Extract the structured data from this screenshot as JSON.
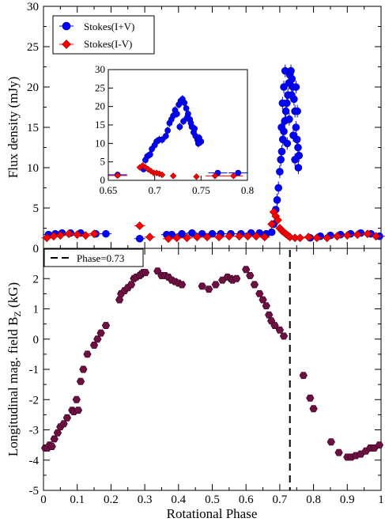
{
  "chart_data": [
    {
      "panel": "top",
      "type": "scatter",
      "xlabel": "",
      "ylabel": "Flux density (mJy)",
      "xlim": [
        0,
        1
      ],
      "ylim": [
        0,
        30
      ],
      "yticks": [
        "0",
        "5",
        "10",
        "15",
        "20",
        "25",
        "30"
      ],
      "legend": {
        "placement": "top-left",
        "entries": [
          "Stokes(I+V)",
          "Stokes(I-V)"
        ]
      },
      "series": [
        {
          "name": "Stokes(I+V)",
          "color": "#0000ff",
          "marker": "circle",
          "points": [
            [
              0.015,
              1.7
            ],
            [
              0.035,
              1.8
            ],
            [
              0.055,
              1.9
            ],
            [
              0.08,
              1.9
            ],
            [
              0.11,
              1.9
            ],
            [
              0.155,
              1.8
            ],
            [
              0.185,
              1.8
            ],
            [
              0.285,
              1.2
            ],
            [
              0.365,
              1.7
            ],
            [
              0.38,
              1.7
            ],
            [
              0.41,
              1.8
            ],
            [
              0.44,
              1.9
            ],
            [
              0.47,
              1.8
            ],
            [
              0.5,
              1.8
            ],
            [
              0.525,
              1.8
            ],
            [
              0.555,
              1.8
            ],
            [
              0.585,
              1.8
            ],
            [
              0.615,
              1.9
            ],
            [
              0.64,
              1.9
            ],
            [
              0.66,
              1.8
            ],
            [
              0.676,
              2.0
            ],
            [
              0.682,
              3.0
            ],
            [
              0.688,
              4.8
            ],
            [
              0.692,
              6.0
            ],
            [
              0.696,
              7.5
            ],
            [
              0.7,
              9.5
            ],
            [
              0.703,
              11.0
            ],
            [
              0.706,
              12.0
            ],
            [
              0.709,
              13.5
            ],
            [
              0.712,
              14.5
            ],
            [
              0.715,
              15.8
            ],
            [
              0.718,
              17.0
            ],
            [
              0.721,
              18.0
            ],
            [
              0.724,
              19.0
            ],
            [
              0.727,
              20.5
            ],
            [
              0.73,
              21.5
            ],
            [
              0.733,
              22.0
            ],
            [
              0.736,
              21.0
            ],
            [
              0.739,
              20.0
            ],
            [
              0.742,
              18.5
            ],
            [
              0.745,
              17.0
            ],
            [
              0.748,
              15.0
            ],
            [
              0.751,
              13.5
            ],
            [
              0.754,
              12.5
            ],
            [
              0.757,
              11.5
            ],
            [
              0.705,
              15
            ],
            [
              0.708,
              18
            ],
            [
              0.712,
              20
            ],
            [
              0.716,
              22
            ],
            [
              0.722,
              13
            ],
            [
              0.728,
              16
            ],
            [
              0.735,
              19
            ],
            [
              0.74,
              14
            ],
            [
              0.745,
              11
            ],
            [
              0.748,
              20
            ],
            [
              0.752,
              17
            ],
            [
              0.755,
              10
            ],
            [
              0.79,
              1.3
            ],
            [
              0.82,
              1.5
            ],
            [
              0.85,
              1.6
            ],
            [
              0.88,
              1.7
            ],
            [
              0.91,
              1.8
            ],
            [
              0.94,
              1.9
            ],
            [
              0.97,
              1.8
            ],
            [
              0.995,
              1.5
            ]
          ]
        },
        {
          "name": "Stokes(I-V)",
          "color": "#ff0000",
          "marker": "diamond",
          "points": [
            [
              0.01,
              1.3
            ],
            [
              0.03,
              1.5
            ],
            [
              0.05,
              1.6
            ],
            [
              0.075,
              1.8
            ],
            [
              0.1,
              1.7
            ],
            [
              0.125,
              1.6
            ],
            [
              0.15,
              1.8
            ],
            [
              0.285,
              2.8
            ],
            [
              0.315,
              1.4
            ],
            [
              0.37,
              1.2
            ],
            [
              0.395,
              1.3
            ],
            [
              0.425,
              1.3
            ],
            [
              0.455,
              1.4
            ],
            [
              0.485,
              1.4
            ],
            [
              0.52,
              1.4
            ],
            [
              0.55,
              1.5
            ],
            [
              0.58,
              1.5
            ],
            [
              0.605,
              1.5
            ],
            [
              0.63,
              1.5
            ],
            [
              0.655,
              1.4
            ],
            [
              0.676,
              3.0
            ],
            [
              0.682,
              4.5
            ],
            [
              0.688,
              4.0
            ],
            [
              0.694,
              3.5
            ],
            [
              0.7,
              2.5
            ],
            [
              0.706,
              2.2
            ],
            [
              0.712,
              2.0
            ],
            [
              0.718,
              1.8
            ],
            [
              0.724,
              1.6
            ],
            [
              0.73,
              1.4
            ],
            [
              0.745,
              1.3
            ],
            [
              0.76,
              1.3
            ],
            [
              0.785,
              1.4
            ],
            [
              0.81,
              1.3
            ],
            [
              0.84,
              1.3
            ],
            [
              0.87,
              1.5
            ],
            [
              0.9,
              1.6
            ],
            [
              0.93,
              1.7
            ],
            [
              0.96,
              1.8
            ],
            [
              0.985,
              1.5
            ]
          ]
        }
      ],
      "inset": {
        "xlim": [
          0.65,
          0.8
        ],
        "ylim": [
          0,
          30
        ],
        "xticks": [
          "0.65",
          "0.7",
          "0.75",
          "0.8"
        ],
        "yticks": [
          "0",
          "5",
          "10",
          "15",
          "20",
          "25",
          "30"
        ],
        "series": [
          {
            "name": "Stokes(I+V)",
            "points": [
              [
                0.66,
                1.5
              ],
              [
                0.688,
                3.0
              ],
              [
                0.69,
                5.5
              ],
              [
                0.692,
                6.5
              ],
              [
                0.695,
                7.0
              ],
              [
                0.697,
                8.5
              ],
              [
                0.7,
                9.5
              ],
              [
                0.702,
                10.5
              ],
              [
                0.705,
                11.0
              ],
              [
                0.708,
                11.0
              ],
              [
                0.712,
                12.0
              ],
              [
                0.714,
                13.5
              ],
              [
                0.716,
                15.5
              ],
              [
                0.718,
                16.5
              ],
              [
                0.72,
                17.5
              ],
              [
                0.722,
                19.0
              ],
              [
                0.724,
                18.0
              ],
              [
                0.726,
                20.5
              ],
              [
                0.728,
                21.5
              ],
              [
                0.73,
                22.0
              ],
              [
                0.732,
                21.0
              ],
              [
                0.734,
                19.5
              ],
              [
                0.736,
                18.0
              ],
              [
                0.738,
                16.5
              ],
              [
                0.74,
                14.5
              ],
              [
                0.742,
                13.0
              ],
              [
                0.744,
                12.0
              ],
              [
                0.746,
                11.0
              ],
              [
                0.748,
                11.5
              ],
              [
                0.75,
                10.5
              ],
              [
                0.727,
                14.5
              ],
              [
                0.731,
                16.0
              ],
              [
                0.735,
                17.0
              ],
              [
                0.739,
                15.5
              ],
              [
                0.743,
                14.0
              ],
              [
                0.747,
                10.0
              ],
              [
                0.768,
                2.0
              ],
              [
                0.79,
                2.0
              ]
            ]
          },
          {
            "name": "Stokes(I-V)",
            "points": [
              [
                0.66,
                1.3
              ],
              [
                0.684,
                3.5
              ],
              [
                0.687,
                4.0
              ],
              [
                0.69,
                3.5
              ],
              [
                0.693,
                3.0
              ],
              [
                0.696,
                2.5
              ],
              [
                0.699,
                2.0
              ],
              [
                0.702,
                2.0
              ],
              [
                0.705,
                1.8
              ],
              [
                0.708,
                1.5
              ],
              [
                0.72,
                1.2
              ],
              [
                0.745,
                1.0
              ],
              [
                0.765,
                1.2
              ],
              [
                0.785,
                1.2
              ]
            ]
          }
        ]
      }
    },
    {
      "panel": "bottom",
      "type": "scatter",
      "xlabel": "Rotational Phase",
      "ylabel": "Longitudinal mag. field B",
      "ylabel_subscript": "Z",
      "ylabel_unit": " (kG)",
      "xlim": [
        0,
        1
      ],
      "ylim": [
        -5,
        3
      ],
      "xticks": [
        "0",
        "0.1",
        "0.2",
        "0.3",
        "0.4",
        "0.5",
        "0.6",
        "0.7",
        "0.8",
        "0.9",
        "1"
      ],
      "yticks": [
        "-5",
        "-4",
        "-3",
        "-2",
        "-1",
        "0",
        "1",
        "2"
      ],
      "vline": {
        "x": 0.73,
        "label": "Phase=0.73"
      },
      "series": [
        {
          "name": "",
          "color": "#6b1040",
          "marker": "hexagon",
          "points": [
            [
              0.005,
              -3.6
            ],
            [
              0.012,
              -3.6
            ],
            [
              0.018,
              -3.5
            ],
            [
              0.025,
              -3.55
            ],
            [
              0.032,
              -3.3
            ],
            [
              0.042,
              -3.1
            ],
            [
              0.05,
              -2.9
            ],
            [
              0.06,
              -2.8
            ],
            [
              0.07,
              -2.6
            ],
            [
              0.085,
              -2.35
            ],
            [
              0.09,
              -2.4
            ],
            [
              0.098,
              -2.0
            ],
            [
              0.103,
              -2.35
            ],
            [
              0.11,
              -1.4
            ],
            [
              0.118,
              -1.0
            ],
            [
              0.13,
              -0.5
            ],
            [
              0.15,
              -0.2
            ],
            [
              0.16,
              0.0
            ],
            [
              0.17,
              0.2
            ],
            [
              0.185,
              0.45
            ],
            [
              0.225,
              1.3
            ],
            [
              0.23,
              1.5
            ],
            [
              0.24,
              1.6
            ],
            [
              0.25,
              1.7
            ],
            [
              0.26,
              1.8
            ],
            [
              0.268,
              2.0
            ],
            [
              0.275,
              2.05
            ],
            [
              0.285,
              2.1
            ],
            [
              0.29,
              2.15
            ],
            [
              0.295,
              2.2
            ],
            [
              0.302,
              2.2
            ],
            [
              0.338,
              2.25
            ],
            [
              0.35,
              2.1
            ],
            [
              0.36,
              2.1
            ],
            [
              0.37,
              2.05
            ],
            [
              0.38,
              1.95
            ],
            [
              0.39,
              1.9
            ],
            [
              0.4,
              1.85
            ],
            [
              0.41,
              1.8
            ],
            [
              0.47,
              1.75
            ],
            [
              0.49,
              1.65
            ],
            [
              0.51,
              1.8
            ],
            [
              0.53,
              1.95
            ],
            [
              0.545,
              2.05
            ],
            [
              0.555,
              2.0
            ],
            [
              0.56,
              1.95
            ],
            [
              0.572,
              2.0
            ],
            [
              0.6,
              2.3
            ],
            [
              0.612,
              2.1
            ],
            [
              0.625,
              1.8
            ],
            [
              0.64,
              1.5
            ],
            [
              0.65,
              1.3
            ],
            [
              0.66,
              1.1
            ],
            [
              0.668,
              0.8
            ],
            [
              0.675,
              0.6
            ],
            [
              0.685,
              0.45
            ],
            [
              0.7,
              0.3
            ],
            [
              0.712,
              0.1
            ],
            [
              0.77,
              -1.2
            ],
            [
              0.79,
              -1.95
            ],
            [
              0.8,
              -2.3
            ],
            [
              0.852,
              -3.4
            ],
            [
              0.875,
              -3.75
            ],
            [
              0.9,
              -3.9
            ],
            [
              0.912,
              -3.9
            ],
            [
              0.925,
              -3.85
            ],
            [
              0.94,
              -3.8
            ],
            [
              0.955,
              -3.7
            ],
            [
              0.968,
              -3.6
            ],
            [
              0.98,
              -3.6
            ],
            [
              0.995,
              -3.5
            ]
          ]
        }
      ]
    }
  ]
}
